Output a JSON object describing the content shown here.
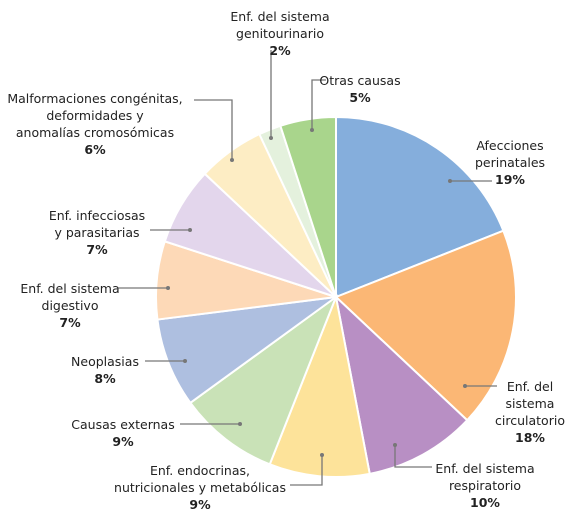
{
  "chart_data": {
    "type": "pie",
    "categories": [
      "Afecciones\nperinatales",
      "Enf. del\nsistema\ncirculatorio",
      "Enf. del sistema\nrespiratorio",
      "Enf. endocrinas,\nnutricionales y metabólicas",
      "Causas externas",
      "Neoplasias",
      "Enf. del sistema\ndigestivo",
      "Enf. infecciosas\ny parasitarias",
      "Malformaciones congénitas,\ndeformidades y\nanomalías cromosómicas",
      "Enf. del sistema\ngenitourinario",
      "Otras causas"
    ],
    "values": [
      19,
      18,
      10,
      9,
      9,
      8,
      7,
      7,
      6,
      2,
      5
    ],
    "value_labels": [
      "19%",
      "18%",
      "10%",
      "9%",
      "9%",
      "8%",
      "7%",
      "7%",
      "6%",
      "2%",
      "5%"
    ],
    "colors": [
      "#85aedc",
      "#fbb775",
      "#b88fc4",
      "#fde39a",
      "#c9e2b7",
      "#aebfe0",
      "#fdd9b7",
      "#e3d6ec",
      "#fdedc4",
      "#e4f1dd",
      "#a9d58c"
    ]
  }
}
